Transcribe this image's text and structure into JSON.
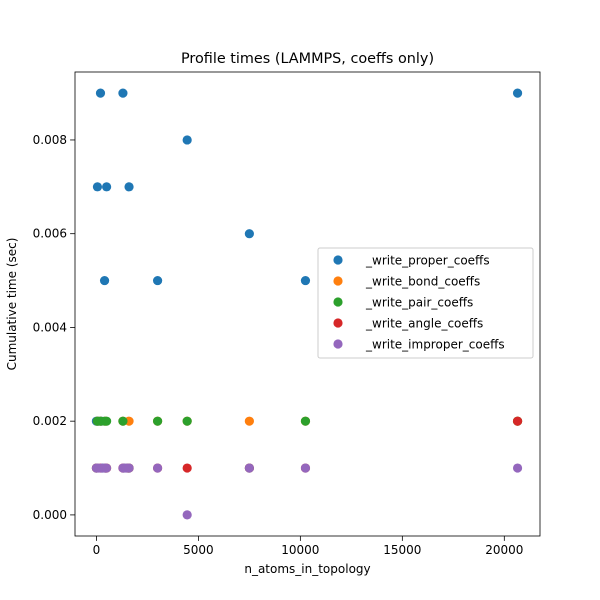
{
  "chart_data": {
    "type": "scatter",
    "title": "Profile times (LAMMPS, coeffs only)",
    "xlabel": "n_atoms_in_topology",
    "ylabel": "Cumulative time (sec)",
    "xlim": [
      -1050,
      21750
    ],
    "ylim": [
      -0.00045,
      0.00945
    ],
    "xticks": [
      0,
      5000,
      10000,
      15000,
      20000
    ],
    "xtick_labels": [
      "0",
      "5000",
      "10000",
      "15000",
      "20000"
    ],
    "yticks": [
      0.0,
      0.002,
      0.004,
      0.006,
      0.008
    ],
    "ytick_labels": [
      "0.000",
      "0.002",
      "0.004",
      "0.006",
      "0.008"
    ],
    "grid": false,
    "legend_position": "center-right",
    "series": [
      {
        "name": "_write_proper_coeffs",
        "color": "#1f77b4",
        "x": [
          200,
          1300,
          4450,
          20650,
          50,
          500,
          1600,
          7500,
          400,
          3000,
          10250,
          0,
          100,
          250,
          300,
          450,
          1350,
          1550
        ],
        "y": [
          0.009,
          0.009,
          0.008,
          0.009,
          0.007,
          0.007,
          0.007,
          0.006,
          0.005,
          0.005,
          0.005,
          0.002,
          0.002,
          0.002,
          0.001,
          0.001,
          0.001,
          0.001
        ]
      },
      {
        "name": "_write_bond_coeffs",
        "color": "#ff7f0e",
        "x": [
          50,
          200,
          450,
          1300,
          1600,
          3000,
          4450,
          7500,
          10250,
          20650,
          500,
          1550
        ],
        "y": [
          0.002,
          0.002,
          0.002,
          0.002,
          0.002,
          0.002,
          0.002,
          0.002,
          0.002,
          0.002,
          0.001,
          0.001
        ]
      },
      {
        "name": "_write_pair_coeffs",
        "color": "#2ca02c",
        "x": [
          50,
          200,
          400,
          500,
          1300,
          3000,
          4450,
          10250,
          20650,
          0,
          1600,
          7500
        ],
        "y": [
          0.002,
          0.002,
          0.002,
          0.002,
          0.002,
          0.002,
          0.002,
          0.002,
          0.002,
          0.001,
          0.001,
          0.001
        ]
      },
      {
        "name": "_write_angle_coeffs",
        "color": "#d62728",
        "x": [
          20650,
          0,
          200,
          450,
          1300,
          1600,
          3000,
          4450,
          7500,
          10250
        ],
        "y": [
          0.002,
          0.001,
          0.001,
          0.001,
          0.001,
          0.001,
          0.001,
          0.001,
          0.001,
          0.001
        ]
      },
      {
        "name": "_write_improper_coeffs",
        "color": "#9467bd",
        "x": [
          0,
          100,
          250,
          400,
          500,
          1300,
          1450,
          1600,
          3000,
          7500,
          10250,
          20650,
          4450
        ],
        "y": [
          0.001,
          0.001,
          0.001,
          0.001,
          0.001,
          0.001,
          0.001,
          0.001,
          0.001,
          0.001,
          0.001,
          0.001,
          0.0
        ]
      }
    ]
  }
}
